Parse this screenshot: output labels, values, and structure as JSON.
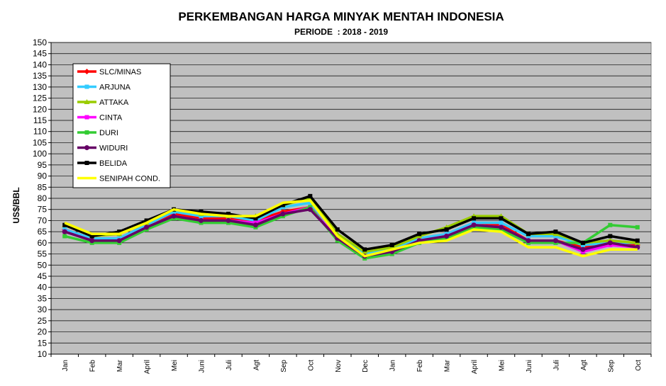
{
  "chart_data": {
    "type": "line",
    "title": "PERKEMBANGAN HARGA MINYAK MENTAH INDONESIA",
    "subtitle": "PERIODE  : 2018 - 2019",
    "xlabel": "",
    "ylabel": "US$/BBL",
    "ylim": [
      10,
      150
    ],
    "ytick_step": 5,
    "grid": true,
    "legend_position": "top-left",
    "categories": [
      "Jan",
      "Feb",
      "Mar",
      "April",
      "Mei",
      "Juni",
      "Juli",
      "Agt",
      "Sep",
      "Oct",
      "Nov",
      "Dec",
      "Jan",
      "Feb",
      "Mar",
      "April",
      "Mei",
      "Juni",
      "Juli",
      "Agt",
      "Sep",
      "Oct"
    ],
    "series": [
      {
        "name": "SLC/MINAS",
        "color": "#ff0000",
        "marker": "diamond",
        "values": [
          66,
          62,
          62,
          68,
          73,
          71,
          71,
          70,
          74,
          76,
          63,
          54,
          56,
          61,
          64,
          68,
          68,
          61,
          61,
          58,
          60,
          59
        ]
      },
      {
        "name": "ARJUNA",
        "color": "#33ccff",
        "marker": "square",
        "values": [
          66,
          62,
          62,
          68,
          74,
          72,
          72,
          70,
          76,
          78,
          63,
          55,
          57,
          62,
          64,
          69,
          69,
          63,
          63,
          59,
          60,
          60
        ]
      },
      {
        "name": "ATTAKA",
        "color": "#99cc00",
        "marker": "triangle",
        "values": [
          68,
          63,
          64,
          69,
          75,
          73,
          72,
          72,
          77,
          80,
          64,
          56,
          58,
          63,
          67,
          72,
          72,
          64,
          64,
          60,
          61,
          60
        ]
      },
      {
        "name": "CINTA",
        "color": "#ff00ff",
        "marker": "square",
        "values": [
          65,
          61,
          61,
          67,
          72,
          70,
          70,
          69,
          73,
          76,
          62,
          54,
          55,
          61,
          63,
          68,
          67,
          61,
          61,
          56,
          59,
          58
        ]
      },
      {
        "name": "DURI",
        "color": "#33cc33",
        "marker": "square",
        "values": [
          63,
          60,
          60,
          66,
          71,
          69,
          69,
          67,
          72,
          76,
          61,
          53,
          55,
          60,
          62,
          67,
          66,
          60,
          60,
          60,
          68,
          67
        ]
      },
      {
        "name": "WIDURI",
        "color": "#660066",
        "marker": "circle",
        "values": [
          65,
          61,
          61,
          67,
          72,
          70,
          70,
          68,
          73,
          75,
          62,
          54,
          56,
          61,
          63,
          68,
          67,
          61,
          61,
          57,
          60,
          58
        ]
      },
      {
        "name": "BELIDA",
        "color": "#000000",
        "marker": "square",
        "values": [
          68,
          63,
          65,
          70,
          75,
          74,
          73,
          71,
          77,
          81,
          66,
          57,
          59,
          64,
          66,
          71,
          71,
          64,
          65,
          60,
          63,
          61
        ]
      },
      {
        "name": "SENIPAH COND.",
        "color": "#ffff00",
        "marker": "none",
        "values": [
          69,
          64,
          64,
          69,
          75,
          73,
          72,
          72,
          78,
          79,
          63,
          54,
          57,
          60,
          61,
          66,
          65,
          58,
          58,
          54,
          57,
          57
        ]
      }
    ]
  }
}
